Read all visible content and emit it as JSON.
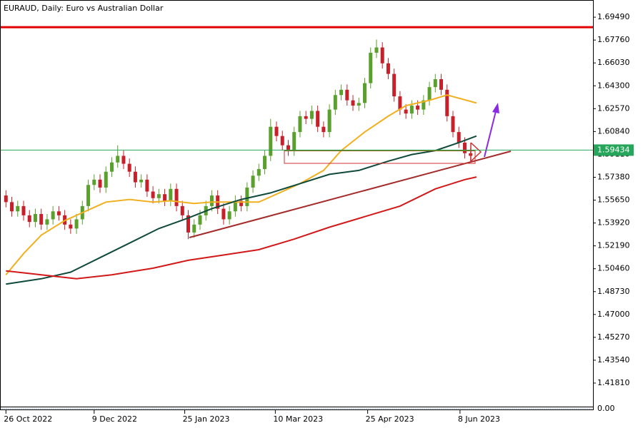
{
  "chart_data": {
    "type": "candlestick",
    "title": "EURAUD, Daily:  Euro vs Australian Dollar",
    "up_color": "#5aa02c",
    "down_color": "#c8202a",
    "open": [
      1.56,
      1.555,
      1.548,
      1.552,
      1.545,
      1.54,
      1.546,
      1.538,
      1.542,
      1.548,
      1.545,
      1.538,
      1.535,
      1.542,
      1.552,
      1.568,
      1.572,
      1.566,
      1.578,
      1.585,
      1.59,
      1.584,
      1.578,
      1.57,
      1.572,
      1.563,
      1.558,
      1.561,
      1.556,
      1.565,
      1.552,
      1.545,
      1.532,
      1.538,
      1.545,
      1.552,
      1.56,
      1.55,
      1.542,
      1.548,
      1.556,
      1.552,
      1.566,
      1.575,
      1.58,
      1.59,
      1.612,
      1.605,
      1.598,
      1.594,
      1.608,
      1.62,
      1.618,
      1.624,
      1.612,
      1.608,
      1.625,
      1.636,
      1.64,
      1.632,
      1.628,
      1.63,
      1.645,
      1.668,
      1.672,
      1.66,
      1.652,
      1.635,
      1.625,
      1.622,
      1.628,
      1.625,
      1.632,
      1.642,
      1.648,
      1.64,
      1.62,
      1.608,
      1.6,
      1.592
    ],
    "high": [
      1.564,
      1.559,
      1.556,
      1.556,
      1.549,
      1.55,
      1.55,
      1.546,
      1.552,
      1.552,
      1.549,
      1.542,
      1.546,
      1.556,
      1.572,
      1.576,
      1.576,
      1.582,
      1.589,
      1.598,
      1.594,
      1.588,
      1.582,
      1.576,
      1.576,
      1.567,
      1.565,
      1.565,
      1.569,
      1.569,
      1.556,
      1.549,
      1.542,
      1.549,
      1.556,
      1.564,
      1.564,
      1.554,
      1.552,
      1.56,
      1.56,
      1.57,
      1.579,
      1.584,
      1.594,
      1.618,
      1.616,
      1.609,
      1.602,
      1.612,
      1.624,
      1.624,
      1.628,
      1.628,
      1.616,
      1.629,
      1.64,
      1.644,
      1.644,
      1.636,
      1.634,
      1.649,
      1.672,
      1.678,
      1.676,
      1.664,
      1.656,
      1.639,
      1.629,
      1.632,
      1.632,
      1.636,
      1.646,
      1.652,
      1.652,
      1.644,
      1.624,
      1.612,
      1.604,
      1.596
    ],
    "low": [
      1.551,
      1.544,
      1.544,
      1.541,
      1.536,
      1.536,
      1.534,
      1.534,
      1.538,
      1.541,
      1.534,
      1.531,
      1.531,
      1.538,
      1.548,
      1.564,
      1.562,
      1.562,
      1.574,
      1.581,
      1.58,
      1.574,
      1.566,
      1.566,
      1.559,
      1.554,
      1.554,
      1.552,
      1.552,
      1.548,
      1.541,
      1.527,
      1.528,
      1.534,
      1.541,
      1.548,
      1.546,
      1.538,
      1.538,
      1.544,
      1.548,
      1.548,
      1.562,
      1.571,
      1.576,
      1.586,
      1.601,
      1.594,
      1.59,
      1.59,
      1.604,
      1.614,
      1.614,
      1.608,
      1.604,
      1.604,
      1.621,
      1.632,
      1.628,
      1.624,
      1.624,
      1.626,
      1.641,
      1.664,
      1.656,
      1.648,
      1.631,
      1.621,
      1.618,
      1.618,
      1.621,
      1.621,
      1.628,
      1.638,
      1.636,
      1.616,
      1.604,
      1.596,
      1.588,
      1.586
    ],
    "close": [
      1.555,
      1.548,
      1.552,
      1.545,
      1.54,
      1.546,
      1.538,
      1.542,
      1.548,
      1.545,
      1.538,
      1.535,
      1.542,
      1.552,
      1.568,
      1.572,
      1.566,
      1.578,
      1.585,
      1.59,
      1.584,
      1.578,
      1.57,
      1.572,
      1.563,
      1.558,
      1.561,
      1.556,
      1.565,
      1.552,
      1.545,
      1.532,
      1.538,
      1.545,
      1.552,
      1.56,
      1.55,
      1.542,
      1.548,
      1.556,
      1.552,
      1.566,
      1.575,
      1.58,
      1.59,
      1.612,
      1.605,
      1.598,
      1.594,
      1.608,
      1.62,
      1.618,
      1.624,
      1.612,
      1.608,
      1.625,
      1.636,
      1.64,
      1.632,
      1.628,
      1.63,
      1.645,
      1.668,
      1.672,
      1.66,
      1.652,
      1.635,
      1.625,
      1.622,
      1.628,
      1.625,
      1.632,
      1.642,
      1.648,
      1.64,
      1.62,
      1.608,
      1.6,
      1.592,
      1.59
    ],
    "lines": [
      {
        "color": "#f0b020",
        "x": [
          0,
          3,
          6,
          10,
          14,
          17,
          21,
          25,
          28,
          32,
          35,
          39,
          43,
          46,
          50,
          54,
          57,
          61,
          65,
          68,
          72,
          75,
          80
        ],
        "y": [
          1.5,
          1.516,
          1.53,
          1.541,
          1.549,
          1.555,
          1.557,
          1.555,
          1.556,
          1.554,
          1.555,
          1.555,
          1.555,
          1.561,
          1.569,
          1.579,
          1.594,
          1.608,
          1.62,
          1.628,
          1.632,
          1.636,
          1.63
        ]
      },
      {
        "color": "#0f4a3a",
        "x": [
          0,
          6,
          11,
          16,
          21,
          26,
          31,
          35,
          40,
          45,
          50,
          55,
          60,
          65,
          69,
          73,
          77,
          80
        ],
        "y": [
          1.493,
          1.497,
          1.502,
          1.513,
          1.524,
          1.535,
          1.543,
          1.55,
          1.557,
          1.562,
          1.569,
          1.576,
          1.579,
          1.586,
          1.591,
          1.594,
          1.6,
          1.605
        ]
      },
      {
        "color": "#d21818",
        "x": [
          0,
          6,
          12,
          18,
          25,
          31,
          37,
          43,
          49,
          55,
          61,
          67,
          73,
          78,
          80
        ],
        "y": [
          1.503,
          1.5,
          1.497,
          1.5,
          1.505,
          1.511,
          1.515,
          1.519,
          1.527,
          1.536,
          1.544,
          1.552,
          1.565,
          1.572,
          1.574
        ]
      }
    ],
    "resistance": {
      "value": 1.6873,
      "color": "#e00000"
    },
    "last_price": 1.59434,
    "last_price_color": "#26a65b",
    "indicator_label": "0.00",
    "ylim": [
      1.4003,
      1.7052
    ],
    "yticks": [
      {
        "value": 1.6949,
        "label": "1.69490"
      },
      {
        "value": 1.6776,
        "label": "1.67760"
      },
      {
        "value": 1.6603,
        "label": "1.66030"
      },
      {
        "value": 1.643,
        "label": "1.64300"
      },
      {
        "value": 1.6257,
        "label": "1.62570"
      },
      {
        "value": 1.6084,
        "label": "1.60840"
      },
      {
        "value": 1.5911,
        "label": "1.59110"
      },
      {
        "value": 1.5738,
        "label": "1.57380"
      },
      {
        "value": 1.5565,
        "label": "1.55650"
      },
      {
        "value": 1.5392,
        "label": "1.53920"
      },
      {
        "value": 1.5219,
        "label": "1.52190"
      },
      {
        "value": 1.5046,
        "label": "1.50460"
      },
      {
        "value": 1.4873,
        "label": "1.48730"
      },
      {
        "value": 1.47,
        "label": "1.47000"
      },
      {
        "value": 1.4527,
        "label": "1.45270"
      },
      {
        "value": 1.4354,
        "label": "1.43540"
      },
      {
        "value": 1.4181,
        "label": "1.41810"
      }
    ],
    "xlim": [
      -0.4,
      99.2
    ],
    "xticks": [
      {
        "value": 0,
        "label": "26 Oct 2022"
      },
      {
        "value": 15,
        "label": "9 Dec 2022"
      },
      {
        "value": 30.4,
        "label": "25 Jan 2023"
      },
      {
        "value": 45.8,
        "label": "10 Mar 2023"
      },
      {
        "value": 61.5,
        "label": "25 Apr 2023"
      },
      {
        "value": 77.2,
        "label": "8 Jun 2023"
      }
    ]
  }
}
